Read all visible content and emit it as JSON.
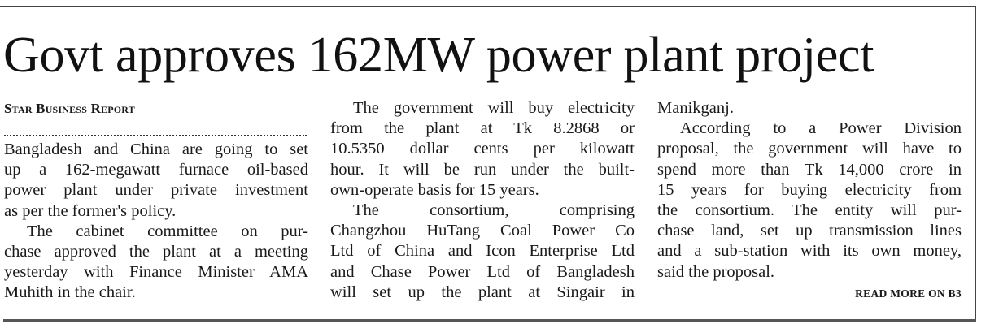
{
  "headline": "Govt approves 162MW power plant project",
  "byline": "Star Business Report",
  "columns": [
    {
      "paragraphs": [
        {
          "indent": false,
          "lines": [
            "Bangladesh and China are going to set",
            "up a 162-megawatt furnace oil-based",
            "power plant under private investment",
            "as per the former's policy."
          ]
        },
        {
          "indent": true,
          "lines": [
            "The cabinet committee on pur-",
            "chase approved the plant at a meeting",
            "yesterday with Finance Minister AMA",
            "Muhith in the chair."
          ]
        }
      ]
    },
    {
      "paragraphs": [
        {
          "indent": true,
          "lines": [
            "The government will buy electricity",
            "from the plant at Tk 8.2868 or",
            "10.5350 dollar cents per kilowatt",
            "hour. It will be run under the built-",
            "own-operate basis for 15 years."
          ]
        },
        {
          "indent": true,
          "lines": [
            "The consortium, comprising",
            "Changzhou HuTang Coal Power Co",
            "Ltd of China and Icon Enterprise Ltd",
            "and Chase Power Ltd of Bangladesh",
            "will set up the plant at Singair in"
          ],
          "continues": true
        }
      ]
    },
    {
      "paragraphs": [
        {
          "indent": false,
          "lines": [
            "Manikganj."
          ]
        },
        {
          "indent": true,
          "lines": [
            "According to a Power Division",
            "proposal, the government will have to",
            "spend more than Tk 14,000 crore in",
            "15 years for buying electricity from",
            "the consortium. The entity will pur-",
            "chase land, set up transmission lines",
            "and a sub-station with its own money,",
            "said the proposal."
          ]
        }
      ]
    }
  ],
  "read_more": "READ MORE ON B3"
}
